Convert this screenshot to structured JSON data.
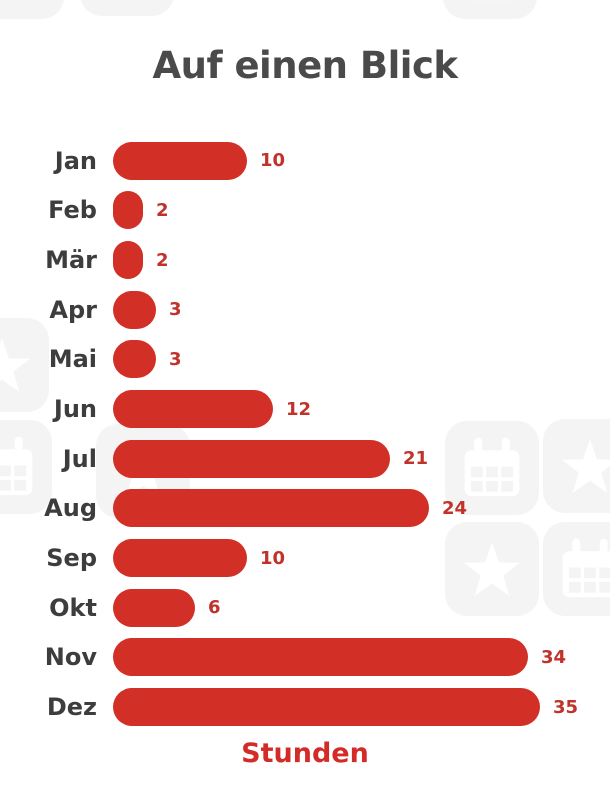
{
  "title": "Auf einen Blick",
  "axis_label": "Stunden",
  "colors": {
    "bar_red": "#d22f27",
    "value_label_red": "#c0322a",
    "axis_label_red": "#d32c28",
    "title_gray": "#4a4a4a",
    "month_label_gray": "#3d3d3d",
    "watermark_gray": "#f5f4f4",
    "background": "#ffffff"
  },
  "chart_data": {
    "type": "bar",
    "orientation": "horizontal",
    "title": "Auf einen Blick",
    "categories": [
      "Jan",
      "Feb",
      "Mär",
      "Apr",
      "Mai",
      "Jun",
      "Jul",
      "Aug",
      "Sep",
      "Okt",
      "Nov",
      "Dez"
    ],
    "values": [
      10,
      2,
      2,
      3,
      3,
      12,
      21,
      24,
      10,
      6,
      34,
      35
    ],
    "xlabel": "Stunden",
    "value_labels_shown": true,
    "grid": false,
    "legend": false,
    "xlim": [
      0,
      35
    ]
  },
  "watermark_icons": [
    "star",
    "calendar",
    "calendar",
    "star",
    "calendar",
    "star",
    "calendar",
    "star",
    "star",
    "calendar"
  ]
}
